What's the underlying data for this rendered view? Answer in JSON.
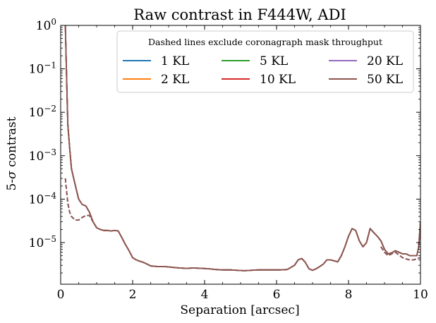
{
  "chart_data": {
    "type": "line",
    "title": "Raw contrast in F444W, ADI",
    "xlabel": "Separation [arcsec]",
    "ylabel_prefix": "5-",
    "ylabel_sigma": "σ",
    "ylabel_suffix": " contrast",
    "xlim": [
      0,
      10
    ],
    "ylog": true,
    "ylim": [
      1.1e-06,
      1.0
    ],
    "x_ticks": [
      {
        "value": 0,
        "label": "0"
      },
      {
        "value": 2,
        "label": "2"
      },
      {
        "value": 4,
        "label": "4"
      },
      {
        "value": 6,
        "label": "6"
      },
      {
        "value": 8,
        "label": "8"
      },
      {
        "value": 10,
        "label": "10"
      }
    ],
    "y_ticks": [
      {
        "value": 1,
        "base": "10",
        "exp": "0"
      },
      {
        "value": 0.1,
        "base": "10",
        "exp": "−1"
      },
      {
        "value": 0.01,
        "base": "10",
        "exp": "−2"
      },
      {
        "value": 0.001,
        "base": "10",
        "exp": "−3"
      },
      {
        "value": 0.0001,
        "base": "10",
        "exp": "−4"
      },
      {
        "value": 1e-05,
        "base": "10",
        "exp": "−5"
      }
    ],
    "legend": {
      "title": "Dashed lines exclude coronagraph mask throughput",
      "placement": "upper-right"
    },
    "series": [
      {
        "name": "1 KL",
        "color": "#1f77b4"
      },
      {
        "name": "2 KL",
        "color": "#ff7f0e"
      },
      {
        "name": "5 KL",
        "color": "#2ca02c"
      },
      {
        "name": "10 KL",
        "color": "#d62728"
      },
      {
        "name": "20 KL",
        "color": "#9467bd"
      },
      {
        "name": "50 KL",
        "color": "#8c564b"
      }
    ],
    "solid_curve": {
      "x": [
        0.13,
        0.15,
        0.18,
        0.2,
        0.25,
        0.3,
        0.4,
        0.5,
        0.6,
        0.7,
        0.8,
        0.9,
        1.0,
        1.1,
        1.2,
        1.3,
        1.4,
        1.5,
        1.6,
        1.7,
        1.8,
        1.9,
        2.0,
        2.1,
        2.2,
        2.3,
        2.4,
        2.5,
        2.7,
        2.9,
        3.1,
        3.3,
        3.5,
        3.7,
        3.9,
        4.1,
        4.3,
        4.5,
        4.7,
        4.9,
        5.1,
        5.3,
        5.5,
        5.7,
        5.9,
        6.1,
        6.3,
        6.5,
        6.6,
        6.7,
        6.8,
        6.9,
        7.0,
        7.1,
        7.2,
        7.3,
        7.4,
        7.5,
        7.6,
        7.7,
        7.8,
        7.9,
        8.0,
        8.1,
        8.2,
        8.3,
        8.4,
        8.5,
        8.6,
        8.7,
        8.8,
        8.9,
        9.0,
        9.1,
        9.2,
        9.3,
        9.4,
        9.5,
        9.6,
        9.7,
        9.8,
        9.9,
        9.95,
        10.0
      ],
      "y": [
        1.0,
        0.2,
        0.02,
        0.005,
        0.0015,
        0.0005,
        0.00022,
        0.0001,
        7.5e-05,
        7e-05,
        5e-05,
        3e-05,
        2.2e-05,
        2e-05,
        1.9e-05,
        1.9e-05,
        1.85e-05,
        1.9e-05,
        1.85e-05,
        1.3e-05,
        9e-06,
        6.5e-06,
        4.5e-06,
        4e-06,
        3.7e-06,
        3.5e-06,
        3.2e-06,
        2.9e-06,
        2.8e-06,
        2.8e-06,
        2.7e-06,
        2.6e-06,
        2.55e-06,
        2.6e-06,
        2.55e-06,
        2.5e-06,
        2.4e-06,
        2.35e-06,
        2.35e-06,
        2.3e-06,
        2.25e-06,
        2.3e-06,
        2.35e-06,
        2.35e-06,
        2.35e-06,
        2.35e-06,
        2.4e-06,
        3e-06,
        4e-06,
        4.3e-06,
        3.5e-06,
        2.5e-06,
        2.3e-06,
        2.5e-06,
        2.8e-06,
        3.2e-06,
        4e-06,
        4e-06,
        3.8e-06,
        3.6e-06,
        5e-06,
        8e-06,
        1.4e-05,
        2.1e-05,
        1.9e-05,
        1.1e-05,
        8e-06,
        1e-05,
        2.1e-05,
        1.7e-05,
        1.4e-05,
        1.1e-05,
        7e-06,
        5.5e-06,
        5.8e-06,
        6.5e-06,
        6e-06,
        5.5e-06,
        5.5e-06,
        5e-06,
        5e-06,
        5e-06,
        8e-06,
        3e-05
      ]
    },
    "dashed_curve": {
      "x": [
        0.13,
        0.15,
        0.2,
        0.25,
        0.3,
        0.4,
        0.5,
        0.6,
        0.7,
        0.8,
        0.9,
        1.0
      ],
      "y": [
        0.0003,
        0.0002,
        8e-05,
        5e-05,
        4e-05,
        3.3e-05,
        3.3e-05,
        3.8e-05,
        4.2e-05,
        4.2e-05,
        3e-05,
        2.2e-05
      ],
      "x_tail": [
        8.9,
        9.0,
        9.1,
        9.2,
        9.3,
        9.4,
        9.5,
        9.6,
        9.7,
        9.8,
        9.9,
        9.95,
        10.0
      ],
      "y_tail": [
        8e-06,
        6e-06,
        5e-06,
        5.5e-06,
        6e-06,
        5.2e-06,
        4.5e-06,
        4.2e-06,
        4e-06,
        4e-06,
        4.2e-06,
        4.4e-06,
        4.5e-06
      ]
    }
  }
}
